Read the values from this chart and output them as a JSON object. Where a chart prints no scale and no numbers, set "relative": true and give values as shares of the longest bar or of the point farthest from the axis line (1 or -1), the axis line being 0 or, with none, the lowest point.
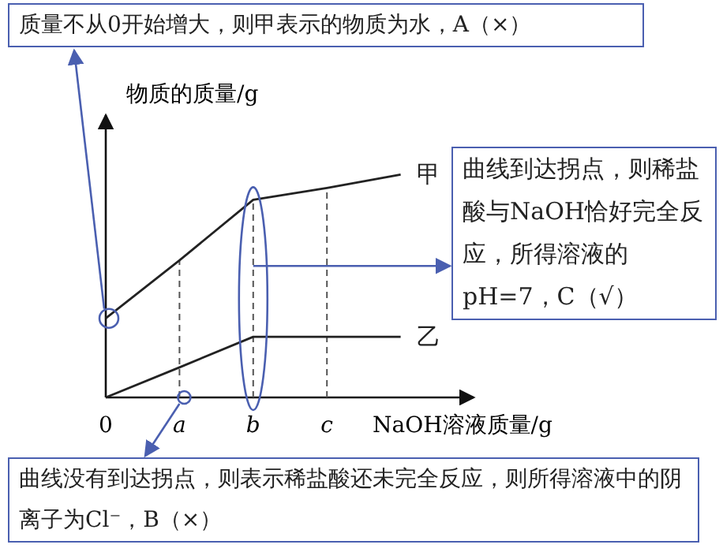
{
  "chart_data": {
    "type": "line",
    "relative": true,
    "ylabel": "物质的质量/g",
    "xlabel": "NaOH溶液质量/g",
    "categories": [
      "0",
      "a",
      "b",
      "c",
      null
    ],
    "series": [
      {
        "name": "甲",
        "color": "#222222",
        "values": [
          0.355,
          0.615,
          0.887,
          0.94,
          1.0
        ]
      },
      {
        "name": "乙",
        "color": "#222222",
        "values": [
          0,
          0.135,
          0.272,
          0.272,
          0.272
        ]
      }
    ],
    "marker": "none",
    "line_style": "solid",
    "grid": false,
    "legend": false,
    "ref_lines": [
      {
        "axis": "x",
        "value": "a",
        "line_style": "dashed",
        "color": "#555555"
      },
      {
        "axis": "x",
        "value": "b",
        "line_style": "dashed",
        "color": "#555555"
      },
      {
        "axis": "x",
        "value": "c",
        "line_style": "dashed",
        "color": "#555555"
      }
    ],
    "annotations": [
      {
        "text": "质量不从0开始增大，则甲表示的物质为水，A（×）",
        "x": "0",
        "y": 0.355
      },
      {
        "text": "曲线到达拐点，则稀盐酸与NaOH恰好完全反应，所得溶液的pH=7，C（√）",
        "x": "b",
        "y": 0.59
      },
      {
        "text": "曲线没有到达拐点，则表示稀盐酸还未完全反应，则所得溶液中的阴离子为Cl⁻，B（×）",
        "x": "a",
        "y": 0
      }
    ]
  }
}
